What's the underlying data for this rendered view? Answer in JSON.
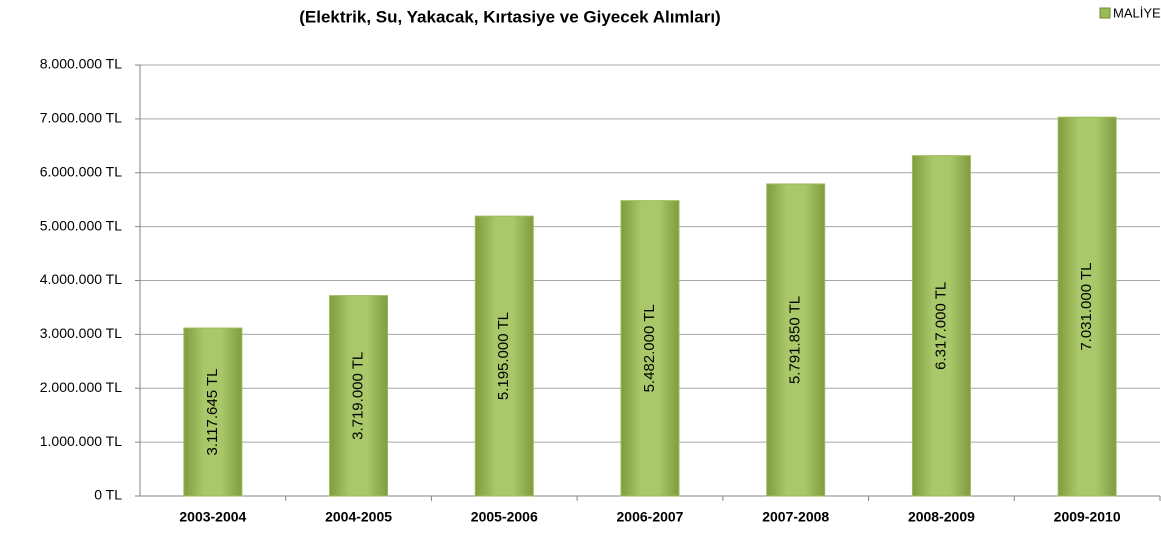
{
  "chart_data": {
    "type": "bar",
    "title": "(Elektrik, Su, Yakacak, Kırtasiye ve Giyecek Alımları)",
    "categories": [
      "2003-2004",
      "2004-2005",
      "2005-2006",
      "2006-2007",
      "2007-2008",
      "2008-2009",
      "2009-2010"
    ],
    "series": [
      {
        "name": "MALİYET",
        "color": "#9bbb59",
        "values": [
          3117645,
          3719000,
          5195000,
          5482000,
          5791850,
          6317000,
          7031000
        ],
        "value_labels": [
          "3.117.645 TL",
          "3.719.000 TL",
          "5.195.000 TL",
          "5.482.000 TL",
          "5.791.850 TL",
          "6.317.000 TL",
          "7.031.000 TL"
        ]
      }
    ],
    "ylim": [
      0,
      8000000
    ],
    "yticks": [
      {
        "value": 0,
        "label": "0 TL"
      },
      {
        "value": 1000000,
        "label": "1.000.000 TL"
      },
      {
        "value": 2000000,
        "label": "2.000.000 TL"
      },
      {
        "value": 3000000,
        "label": "3.000.000 TL"
      },
      {
        "value": 4000000,
        "label": "4.000.000 TL"
      },
      {
        "value": 5000000,
        "label": "5.000.000 TL"
      },
      {
        "value": 6000000,
        "label": "6.000.000 TL"
      },
      {
        "value": 7000000,
        "label": "7.000.000 TL"
      },
      {
        "value": 8000000,
        "label": "8.000.000 TL"
      }
    ],
    "grid": true,
    "legend": "top-right"
  }
}
